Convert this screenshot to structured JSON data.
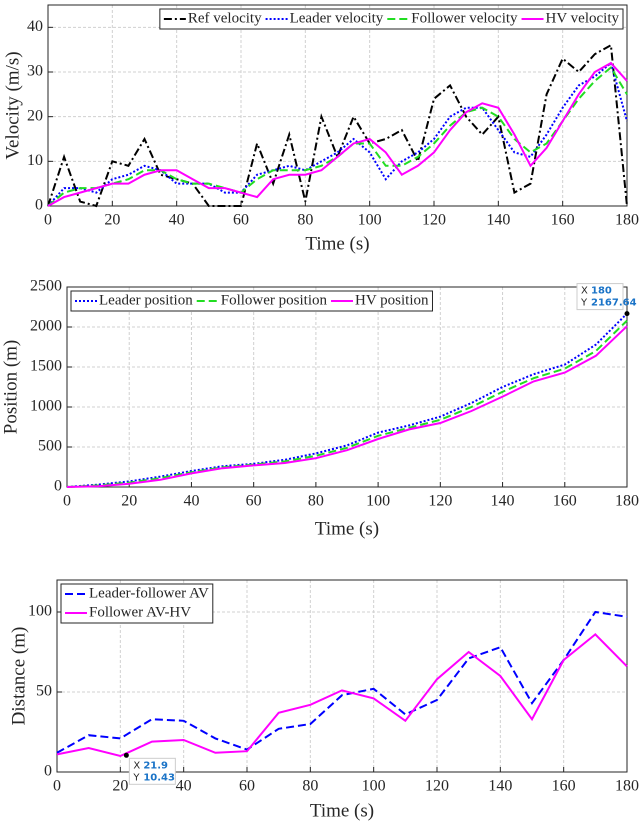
{
  "chart_data": [
    {
      "type": "line",
      "xlabel": "Time (s)",
      "ylabel": "Velocity (m/s)",
      "x": [
        0,
        5,
        10,
        15,
        20,
        25,
        30,
        35,
        40,
        45,
        50,
        55,
        60,
        65,
        70,
        75,
        80,
        85,
        90,
        95,
        100,
        105,
        110,
        115,
        120,
        125,
        130,
        135,
        140,
        145,
        150,
        155,
        160,
        165,
        170,
        175,
        180
      ],
      "series": [
        {
          "name": "Ref velocity",
          "color": "#000000",
          "style": "dashdot",
          "values": [
            0,
            11,
            1,
            0,
            10,
            9,
            15,
            7,
            6,
            5,
            0,
            0,
            0,
            14,
            5,
            16,
            1,
            20,
            11,
            20,
            14,
            15,
            17,
            10,
            24,
            27,
            20,
            16,
            20,
            3,
            5,
            25,
            33,
            30,
            34,
            36,
            0
          ]
        },
        {
          "name": "Leader velocity",
          "color": "#0000ff",
          "style": "dotted",
          "values": [
            0,
            4,
            4,
            3,
            6,
            7,
            9,
            8,
            5,
            5,
            5,
            3,
            3,
            7,
            8,
            9,
            8,
            10,
            12,
            15,
            12,
            6,
            10,
            12,
            15,
            20,
            22,
            22,
            17,
            12,
            11,
            16,
            22,
            27,
            29,
            32,
            19
          ]
        },
        {
          "name": "Follower velocity",
          "color": "#22dd22",
          "style": "dashed",
          "values": [
            0,
            3,
            4,
            4,
            5,
            6,
            8,
            8,
            6,
            5,
            5,
            4,
            3,
            6,
            8,
            8,
            8,
            9,
            11,
            14,
            14,
            9,
            9,
            11,
            14,
            18,
            21,
            22,
            20,
            15,
            12,
            14,
            19,
            24,
            28,
            31,
            25
          ]
        },
        {
          "name": "HV velocity",
          "color": "#ff00ff",
          "style": "solid",
          "values": [
            0,
            2,
            3,
            4,
            5,
            5,
            7,
            8,
            8,
            6,
            4,
            4,
            3,
            2,
            6,
            7,
            7,
            8,
            11,
            14,
            15,
            12,
            7,
            9,
            12,
            17,
            21,
            23,
            22,
            16,
            9,
            13,
            19,
            25,
            30,
            32,
            28
          ]
        }
      ],
      "xlim": [
        0,
        180
      ],
      "xticks": [
        0,
        20,
        40,
        60,
        80,
        100,
        120,
        140,
        160,
        180
      ],
      "ylim": [
        0,
        45
      ],
      "yticks": [
        0,
        10,
        20,
        30,
        40
      ],
      "grid": true,
      "legend": "top-right",
      "legend_orientation": "horizontal"
    },
    {
      "type": "line",
      "xlabel": "Time (s)",
      "ylabel": "Position (m)",
      "x": [
        0,
        10,
        20,
        30,
        40,
        50,
        60,
        70,
        80,
        90,
        100,
        110,
        120,
        130,
        140,
        150,
        160,
        170,
        180
      ],
      "series": [
        {
          "name": "Leader position",
          "color": "#0000ff",
          "style": "dotted",
          "values": [
            0,
            30,
            70,
            130,
            200,
            260,
            290,
            340,
            420,
            520,
            680,
            770,
            880,
            1050,
            1250,
            1410,
            1530,
            1780,
            2167.64
          ]
        },
        {
          "name": "Follower position",
          "color": "#22dd22",
          "style": "dashed",
          "values": [
            0,
            20,
            55,
            110,
            185,
            245,
            280,
            320,
            390,
            490,
            640,
            740,
            840,
            1000,
            1190,
            1360,
            1480,
            1700,
            2080
          ]
        },
        {
          "name": "HV position",
          "color": "#ff00ff",
          "style": "solid",
          "values": [
            0,
            10,
            40,
            90,
            170,
            235,
            270,
            300,
            360,
            460,
            600,
            720,
            800,
            950,
            1130,
            1320,
            1430,
            1640,
            2010
          ]
        }
      ],
      "xlim": [
        0,
        180
      ],
      "xticks": [
        0,
        20,
        40,
        60,
        80,
        100,
        120,
        140,
        160,
        180
      ],
      "ylim": [
        0,
        2500
      ],
      "yticks": [
        0,
        500,
        1000,
        1500,
        2000,
        2500
      ],
      "grid": true,
      "legend": "top-left",
      "legend_orientation": "horizontal",
      "datatips": [
        {
          "x_label": "X",
          "x": 180,
          "y_label": "Y",
          "y": 2167.64
        }
      ]
    },
    {
      "type": "line",
      "xlabel": "Time (s)",
      "ylabel": "Distance (m)",
      "x": [
        0,
        10,
        20,
        30,
        40,
        50,
        60,
        70,
        80,
        90,
        100,
        110,
        120,
        130,
        140,
        150,
        160,
        170,
        180
      ],
      "series": [
        {
          "name": "Leader-follower AV",
          "color": "#0000ff",
          "style": "dashed",
          "values": [
            12,
            23,
            21,
            33,
            32,
            21,
            14,
            27,
            30,
            48,
            52,
            36,
            45,
            71,
            78,
            43,
            70,
            100,
            97
          ]
        },
        {
          "name": "Follower AV-HV",
          "color": "#ff00ff",
          "style": "solid",
          "values": [
            11,
            15,
            10,
            19,
            20,
            12,
            13,
            37,
            42,
            51,
            46,
            32,
            58,
            75,
            60,
            33,
            70,
            86,
            66
          ]
        }
      ],
      "xlim": [
        0,
        180
      ],
      "xticks": [
        0,
        20,
        40,
        60,
        80,
        100,
        120,
        140,
        160,
        180
      ],
      "ylim": [
        0,
        120
      ],
      "yticks": [
        0,
        50,
        100
      ],
      "grid": true,
      "legend": "top-left",
      "legend_orientation": "vertical",
      "datatips": [
        {
          "x_label": "X",
          "x": 21.9,
          "y_label": "Y",
          "y": 10.43
        }
      ]
    }
  ]
}
